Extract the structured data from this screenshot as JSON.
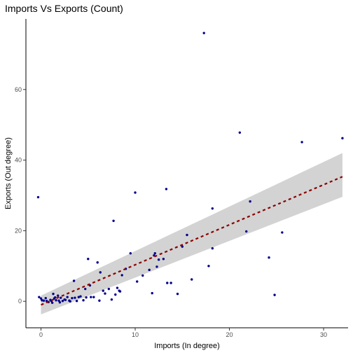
{
  "chart_data": {
    "type": "scatter",
    "title": "Imports Vs Exports (Count)",
    "xlabel": "Imports (In degree)",
    "ylabel": "Exports (Out degree)",
    "xlim": [
      -1.6,
      32.6
    ],
    "ylim": [
      -7.5,
      80
    ],
    "x_ticks": [
      0,
      10,
      20,
      30
    ],
    "y_ticks": [
      0,
      20,
      40,
      60
    ],
    "grid": false,
    "colors": {
      "points": "#00008b",
      "trend": "#8b0000",
      "band": "#d3d3d3"
    },
    "series": [
      {
        "kind": "points",
        "points": [
          [
            -0.3,
            29.5
          ],
          [
            -0.2,
            1.2
          ],
          [
            0,
            0.8
          ],
          [
            0.1,
            0.3
          ],
          [
            0.3,
            0.2
          ],
          [
            0.5,
            0.9
          ],
          [
            0.6,
            0.1
          ],
          [
            0.8,
            -0.2
          ],
          [
            1.0,
            0.4
          ],
          [
            1.1,
            0.1
          ],
          [
            1.2,
            -0.4
          ],
          [
            1.3,
            2.1
          ],
          [
            1.4,
            0.8
          ],
          [
            1.5,
            1.1
          ],
          [
            1.6,
            0.3
          ],
          [
            1.8,
            1.6
          ],
          [
            1.9,
            0.2
          ],
          [
            2.0,
            -0.3
          ],
          [
            2.1,
            1.0
          ],
          [
            2.3,
            0.1
          ],
          [
            2.5,
            0.5
          ],
          [
            2.6,
            0.4
          ],
          [
            2.8,
            1.2
          ],
          [
            3.0,
            0.2
          ],
          [
            3.1,
            0.0
          ],
          [
            3.3,
            0.9
          ],
          [
            3.5,
            5.8
          ],
          [
            3.6,
            1.0
          ],
          [
            3.8,
            0.1
          ],
          [
            4.0,
            1.2
          ],
          [
            4.2,
            1.4
          ],
          [
            4.5,
            0.3
          ],
          [
            4.7,
            3.5
          ],
          [
            4.8,
            1.1
          ],
          [
            5.0,
            12.0
          ],
          [
            5.2,
            4.5
          ],
          [
            5.3,
            1.2
          ],
          [
            5.6,
            1.2
          ],
          [
            6.0,
            11.0
          ],
          [
            6.2,
            0.2
          ],
          [
            6.3,
            8.2
          ],
          [
            6.6,
            3.0
          ],
          [
            6.8,
            2.2
          ],
          [
            7.2,
            3.5
          ],
          [
            7.5,
            0.5
          ],
          [
            7.7,
            22.8
          ],
          [
            7.9,
            1.9
          ],
          [
            8.1,
            3.8
          ],
          [
            8.3,
            3.0
          ],
          [
            8.4,
            2.8
          ],
          [
            8.6,
            7.4
          ],
          [
            9.0,
            9.2
          ],
          [
            9.5,
            13.6
          ],
          [
            10.0,
            30.8
          ],
          [
            10.2,
            5.6
          ],
          [
            10.8,
            7.3
          ],
          [
            11.5,
            8.9
          ],
          [
            11.8,
            2.3
          ],
          [
            12.0,
            13.0
          ],
          [
            12.1,
            13.6
          ],
          [
            12.3,
            9.8
          ],
          [
            12.5,
            11.8
          ],
          [
            13.0,
            12.0
          ],
          [
            13.3,
            31.8
          ],
          [
            13.4,
            5.2
          ],
          [
            13.8,
            5.2
          ],
          [
            14.5,
            2.1
          ],
          [
            15.0,
            15.5
          ],
          [
            15.5,
            18.8
          ],
          [
            16.0,
            6.2
          ],
          [
            17.3,
            76.0
          ],
          [
            17.8,
            10.0
          ],
          [
            18.2,
            26.3
          ],
          [
            18.2,
            15.0
          ],
          [
            21.1,
            47.8
          ],
          [
            21.8,
            19.8
          ],
          [
            22.2,
            28.3
          ],
          [
            24.2,
            12.4
          ],
          [
            24.8,
            1.8
          ],
          [
            25.6,
            19.5
          ],
          [
            27.7,
            45.1
          ],
          [
            32.0,
            46.2
          ]
        ]
      },
      {
        "kind": "trend",
        "x": [
          0,
          32
        ],
        "y": [
          -1,
          35.3
        ],
        "band_low": [
          -3.7,
          29.6
        ],
        "band_high": [
          1.6,
          42.0
        ]
      }
    ]
  }
}
